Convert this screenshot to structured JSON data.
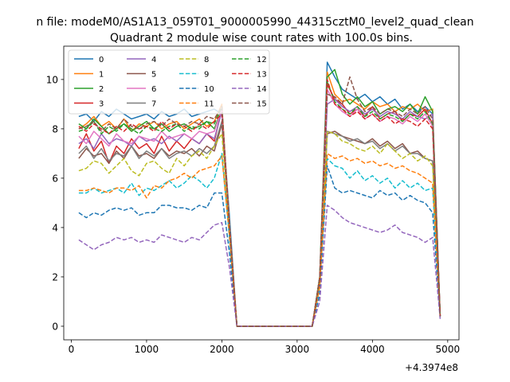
{
  "chart_data": {
    "type": "line",
    "suptitle": "n file: modeM0/AS1A13_059T01_9000005990_44315cztM0_level2_quad_clean",
    "title": "Quadrant 2 module wise count rates with 100.0s bins.",
    "xlabel": "",
    "ylabel": "",
    "x_offset_label": "+4.3974e8",
    "xlim": [
      -100,
      5150
    ],
    "ylim": [
      -0.55,
      11.35
    ],
    "xticks": [
      0,
      1000,
      2000,
      3000,
      4000,
      5000
    ],
    "yticks": [
      0,
      2,
      4,
      6,
      8,
      10
    ],
    "grid": false,
    "legend_position": "top-left",
    "legend_columns": 4,
    "x": [
      100,
      200,
      300,
      400,
      500,
      600,
      700,
      800,
      900,
      1000,
      1100,
      1200,
      1300,
      1400,
      1500,
      1600,
      1700,
      1800,
      1900,
      2000,
      2100,
      2200,
      2300,
      2400,
      2500,
      2600,
      2700,
      2800,
      2900,
      3000,
      3100,
      3200,
      3300,
      3400,
      3500,
      3600,
      3700,
      3800,
      3900,
      4000,
      4100,
      4200,
      4300,
      4400,
      4500,
      4600,
      4700,
      4800,
      4900
    ],
    "series": [
      {
        "name": "0",
        "color": "#1f77b4",
        "dashed": false,
        "values": [
          8.5,
          8.6,
          8.3,
          8.7,
          8.5,
          8.8,
          8.6,
          8.4,
          8.5,
          8.6,
          8.4,
          8.7,
          8.5,
          8.6,
          8.8,
          8.5,
          8.6,
          8.7,
          8.8,
          8.6,
          4.5,
          0,
          0,
          0,
          0,
          0,
          0,
          0,
          0,
          0,
          0,
          0,
          2.0,
          10.7,
          10.1,
          9.6,
          9.4,
          9.2,
          9.4,
          9.1,
          9.3,
          9.0,
          9.2,
          8.8,
          9.0,
          8.7,
          8.9,
          8.6,
          0.4
        ]
      },
      {
        "name": "1",
        "color": "#ff7f0e",
        "dashed": false,
        "values": [
          8.0,
          8.2,
          8.5,
          8.1,
          8.3,
          8.0,
          8.4,
          7.9,
          8.2,
          8.1,
          8.3,
          8.0,
          8.2,
          8.3,
          8.0,
          8.2,
          8.4,
          8.1,
          8.3,
          9.0,
          4.2,
          0,
          0,
          0,
          0,
          0,
          0,
          0,
          0,
          0,
          0,
          0,
          2.0,
          10.3,
          9.4,
          9.1,
          9.2,
          9.0,
          8.8,
          9.1,
          8.9,
          9.0,
          8.7,
          8.9,
          8.8,
          9.0,
          8.7,
          8.8,
          0.4
        ]
      },
      {
        "name": "2",
        "color": "#2ca02c",
        "dashed": false,
        "values": [
          8.2,
          8.0,
          8.4,
          8.1,
          7.8,
          8.0,
          8.2,
          7.9,
          8.1,
          8.3,
          8.0,
          8.2,
          7.9,
          8.1,
          8.2,
          8.0,
          8.1,
          8.3,
          8.0,
          8.8,
          4.0,
          0,
          0,
          0,
          0,
          0,
          0,
          0,
          0,
          0,
          0,
          0,
          2.0,
          10.1,
          10.4,
          9.4,
          9.0,
          9.3,
          8.9,
          9.1,
          8.6,
          8.8,
          8.9,
          8.7,
          9.0,
          8.6,
          9.3,
          8.7,
          0.4
        ]
      },
      {
        "name": "3",
        "color": "#d62728",
        "dashed": false,
        "values": [
          7.2,
          7.8,
          7.1,
          7.5,
          6.6,
          7.3,
          7.0,
          7.6,
          7.2,
          7.4,
          7.0,
          7.7,
          7.1,
          7.5,
          7.2,
          7.6,
          7.4,
          7.8,
          7.5,
          8.8,
          4.0,
          0,
          0,
          0,
          0,
          0,
          0,
          0,
          0,
          0,
          0,
          0,
          1.8,
          9.8,
          9.2,
          9.0,
          8.6,
          8.8,
          8.5,
          8.9,
          8.4,
          8.6,
          8.7,
          8.3,
          8.6,
          8.5,
          8.8,
          8.2,
          0.4
        ]
      },
      {
        "name": "4",
        "color": "#9467bd",
        "dashed": false,
        "values": [
          7.4,
          7.6,
          7.2,
          7.8,
          7.4,
          7.6,
          7.5,
          7.3,
          7.7,
          7.5,
          7.6,
          7.4,
          7.7,
          7.5,
          7.8,
          7.6,
          7.4,
          7.8,
          7.6,
          8.7,
          4.0,
          0,
          0,
          0,
          0,
          0,
          0,
          0,
          0,
          0,
          0,
          0,
          1.8,
          9.0,
          9.2,
          8.9,
          8.7,
          8.9,
          8.6,
          8.8,
          8.5,
          8.7,
          8.6,
          8.4,
          8.7,
          8.5,
          8.4,
          8.6,
          0.4
        ]
      },
      {
        "name": "5",
        "color": "#8c564b",
        "dashed": false,
        "values": [
          6.8,
          7.2,
          6.9,
          7.0,
          6.6,
          7.1,
          6.8,
          7.3,
          6.9,
          7.0,
          6.8,
          7.2,
          6.9,
          7.1,
          7.0,
          7.2,
          6.9,
          7.3,
          7.1,
          8.2,
          4.0,
          0,
          0,
          0,
          0,
          0,
          0,
          0,
          0,
          0,
          0,
          0,
          1.8,
          7.8,
          7.9,
          7.7,
          7.6,
          7.5,
          7.4,
          7.6,
          7.3,
          7.5,
          7.2,
          7.4,
          7.0,
          7.1,
          6.8,
          6.7,
          0.4
        ]
      },
      {
        "name": "6",
        "color": "#e377c2",
        "dashed": false,
        "values": [
          7.7,
          7.4,
          7.9,
          7.6,
          7.3,
          7.8,
          7.5,
          7.4,
          7.7,
          7.6,
          7.5,
          7.9,
          7.6,
          7.7,
          7.8,
          7.6,
          7.9,
          7.8,
          7.9,
          8.8,
          4.1,
          0,
          0,
          0,
          0,
          0,
          0,
          0,
          0,
          0,
          0,
          0,
          1.9,
          9.6,
          9.0,
          8.7,
          8.5,
          8.8,
          8.4,
          8.6,
          8.3,
          8.5,
          8.4,
          8.2,
          8.5,
          8.3,
          8.6,
          8.1,
          0.4
        ]
      },
      {
        "name": "7",
        "color": "#7f7f7f",
        "dashed": false,
        "values": [
          7.0,
          7.3,
          6.8,
          7.2,
          6.7,
          7.0,
          6.9,
          7.3,
          6.8,
          7.1,
          6.9,
          7.2,
          6.8,
          7.0,
          7.1,
          6.9,
          7.2,
          7.0,
          7.3,
          8.3,
          4.0,
          0,
          0,
          0,
          0,
          0,
          0,
          0,
          0,
          0,
          0,
          0,
          1.8,
          7.9,
          7.8,
          7.7,
          7.5,
          7.6,
          7.4,
          7.5,
          7.2,
          7.4,
          7.1,
          7.3,
          7.0,
          7.0,
          6.8,
          6.7,
          0.4
        ]
      },
      {
        "name": "8",
        "color": "#bcbd22",
        "dashed": true,
        "values": [
          6.3,
          6.4,
          6.7,
          6.6,
          6.2,
          6.5,
          6.8,
          6.3,
          6.1,
          6.6,
          6.7,
          6.4,
          6.2,
          6.8,
          6.5,
          6.9,
          7.1,
          6.8,
          7.3,
          7.8,
          4.0,
          0,
          0,
          0,
          0,
          0,
          0,
          0,
          0,
          0,
          0,
          0,
          1.8,
          7.9,
          7.8,
          7.5,
          7.4,
          7.2,
          7.1,
          7.3,
          7.0,
          7.4,
          7.1,
          6.8,
          7.0,
          6.7,
          6.9,
          6.5,
          0.4
        ]
      },
      {
        "name": "9",
        "color": "#17becf",
        "dashed": true,
        "values": [
          5.4,
          5.4,
          5.6,
          5.4,
          5.5,
          5.6,
          5.4,
          5.8,
          5.3,
          5.6,
          5.5,
          5.7,
          5.9,
          5.6,
          5.8,
          6.1,
          5.9,
          5.6,
          6.0,
          7.0,
          3.6,
          0,
          0,
          0,
          0,
          0,
          0,
          0,
          0,
          0,
          0,
          0,
          1.6,
          6.8,
          6.5,
          6.4,
          6.0,
          6.3,
          5.9,
          6.1,
          5.8,
          6.0,
          5.6,
          5.9,
          5.6,
          5.8,
          5.5,
          5.6,
          0.4
        ]
      },
      {
        "name": "10",
        "color": "#1f77b4",
        "dashed": true,
        "values": [
          4.6,
          4.4,
          4.6,
          4.5,
          4.7,
          4.8,
          4.7,
          4.8,
          4.5,
          4.6,
          4.6,
          4.9,
          4.9,
          4.8,
          4.8,
          4.7,
          4.9,
          4.8,
          5.4,
          5.4,
          3.0,
          0,
          0,
          0,
          0,
          0,
          0,
          0,
          0,
          0,
          0,
          0,
          1.3,
          6.5,
          5.6,
          5.4,
          5.5,
          5.4,
          5.3,
          5.2,
          5.5,
          5.3,
          5.4,
          5.1,
          5.3,
          5.1,
          5.0,
          4.6,
          0.4
        ]
      },
      {
        "name": "11",
        "color": "#ff7f0e",
        "dashed": true,
        "values": [
          5.5,
          5.5,
          5.6,
          5.5,
          5.4,
          5.6,
          5.6,
          5.5,
          5.7,
          5.2,
          5.7,
          5.6,
          5.9,
          6.0,
          6.2,
          6.0,
          6.3,
          6.4,
          6.5,
          6.9,
          3.7,
          0,
          0,
          0,
          0,
          0,
          0,
          0,
          0,
          0,
          0,
          0,
          1.6,
          7.0,
          6.8,
          6.9,
          6.7,
          6.8,
          6.6,
          6.7,
          6.5,
          6.6,
          6.4,
          6.5,
          6.3,
          6.2,
          6.0,
          5.8,
          0.4
        ]
      },
      {
        "name": "12",
        "color": "#2ca02c",
        "dashed": true,
        "values": [
          7.9,
          8.0,
          8.3,
          7.8,
          8.1,
          7.9,
          8.2,
          8.0,
          7.8,
          8.1,
          8.0,
          7.9,
          8.1,
          8.2,
          7.9,
          8.1,
          8.0,
          8.3,
          8.2,
          8.9,
          4.1,
          0,
          0,
          0,
          0,
          0,
          0,
          0,
          0,
          0,
          0,
          0,
          1.9,
          9.9,
          9.1,
          8.8,
          8.6,
          8.9,
          8.5,
          8.7,
          8.4,
          8.6,
          8.5,
          8.3,
          8.6,
          8.4,
          8.7,
          8.2,
          0.4
        ]
      },
      {
        "name": "13",
        "color": "#d62728",
        "dashed": true,
        "values": [
          8.1,
          7.9,
          8.2,
          8.0,
          7.8,
          8.1,
          7.9,
          8.2,
          8.0,
          8.1,
          7.9,
          8.3,
          8.0,
          8.2,
          8.1,
          7.9,
          8.2,
          8.0,
          8.3,
          8.6,
          4.1,
          0,
          0,
          0,
          0,
          0,
          0,
          0,
          0,
          0,
          0,
          0,
          1.9,
          10.0,
          9.0,
          8.8,
          8.5,
          8.7,
          8.4,
          8.6,
          8.3,
          8.5,
          8.2,
          8.4,
          8.3,
          8.1,
          8.4,
          8.0,
          0.4
        ]
      },
      {
        "name": "14",
        "color": "#9467bd",
        "dashed": true,
        "values": [
          3.5,
          3.3,
          3.1,
          3.3,
          3.4,
          3.6,
          3.5,
          3.6,
          3.4,
          3.5,
          3.4,
          3.7,
          3.6,
          3.5,
          3.4,
          3.6,
          3.5,
          3.8,
          4.1,
          4.2,
          2.4,
          0,
          0,
          0,
          0,
          0,
          0,
          0,
          0,
          0,
          0,
          0,
          1.0,
          4.9,
          4.7,
          4.4,
          4.2,
          4.1,
          4.0,
          3.9,
          3.8,
          3.9,
          4.1,
          3.8,
          3.7,
          3.6,
          3.4,
          3.6,
          0.3
        ]
      },
      {
        "name": "15",
        "color": "#8c564b",
        "dashed": true,
        "values": [
          8.0,
          8.1,
          8.3,
          7.9,
          8.2,
          8.0,
          8.4,
          8.1,
          8.0,
          8.2,
          8.3,
          8.1,
          8.4,
          8.2,
          8.1,
          8.3,
          8.2,
          8.5,
          8.4,
          8.9,
          4.2,
          0,
          0,
          0,
          0,
          0,
          0,
          0,
          0,
          0,
          0,
          0,
          2.0,
          9.4,
          9.3,
          9.0,
          10.1,
          9.2,
          8.7,
          8.9,
          8.6,
          8.8,
          8.7,
          8.5,
          8.8,
          8.6,
          8.9,
          8.4,
          0.4
        ]
      }
    ]
  }
}
